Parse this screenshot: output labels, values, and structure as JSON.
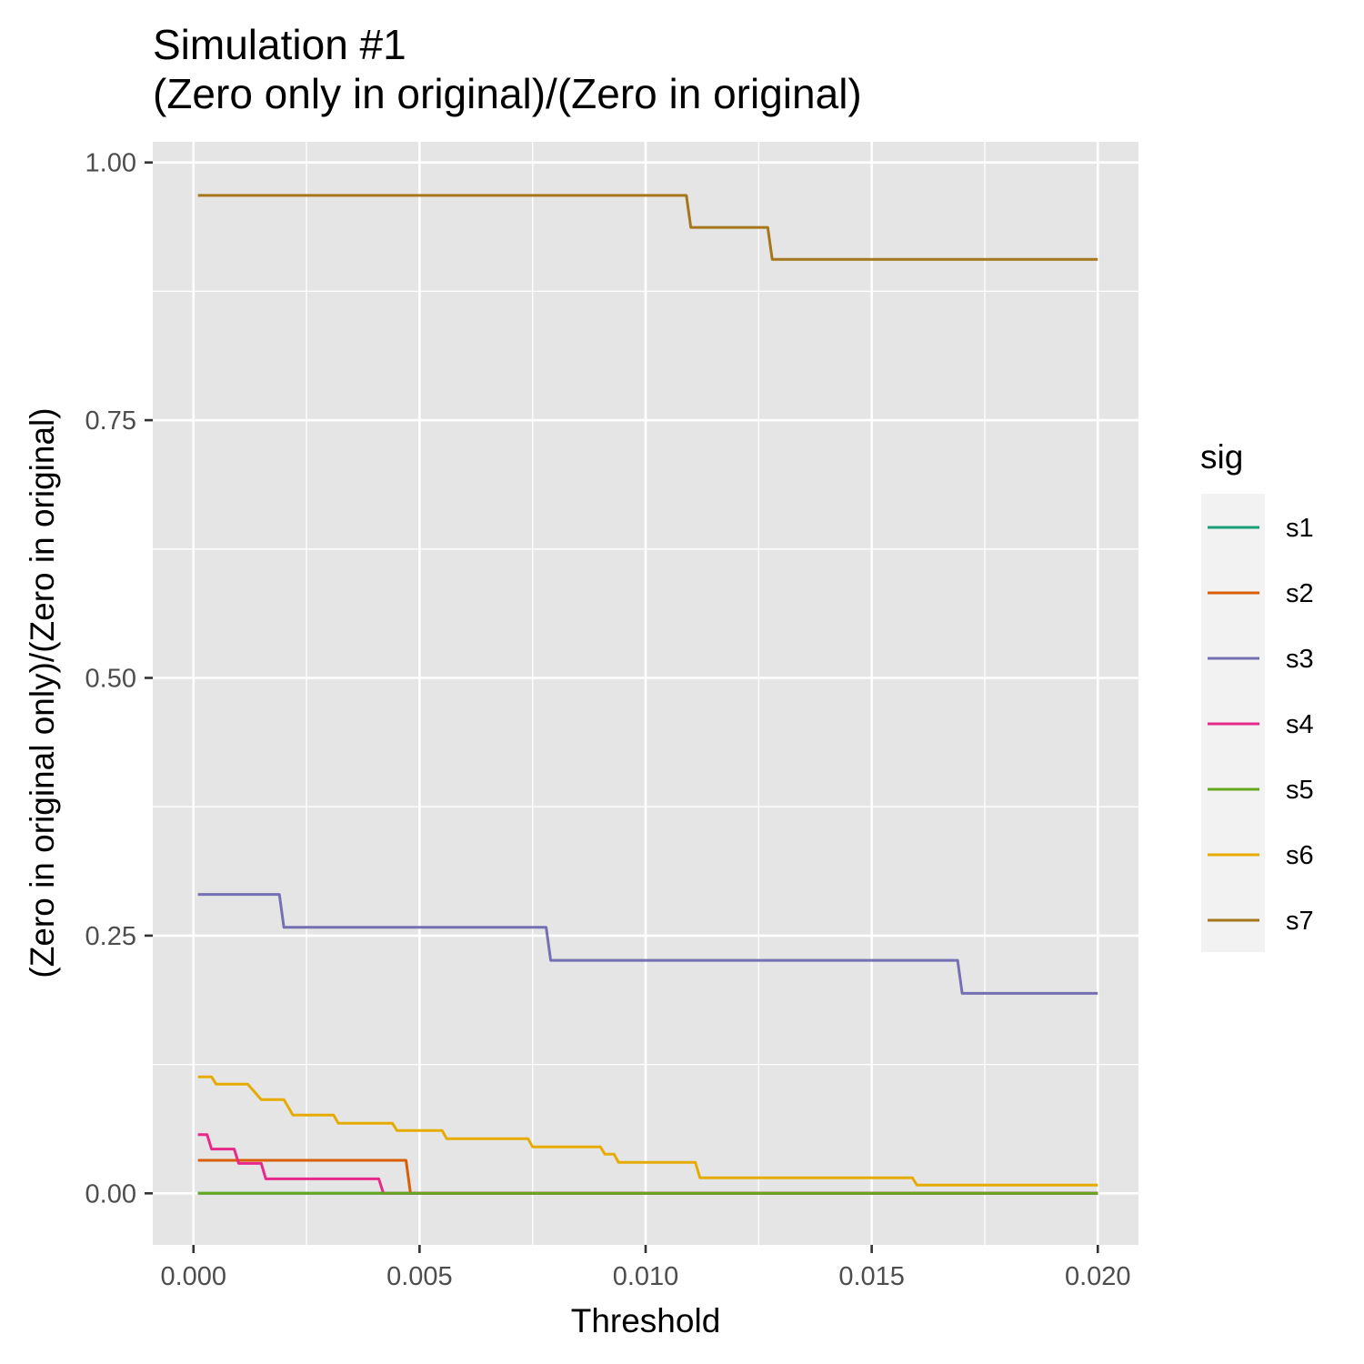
{
  "chart_data": {
    "type": "line",
    "step": true,
    "title": "Simulation #1",
    "subtitle": "(Zero only in original)/(Zero in original)",
    "xlabel": "Threshold",
    "ylabel": "(Zero in original only)/(Zero in original)",
    "xlim": [
      -0.0009,
      0.0209
    ],
    "ylim": [
      -0.05,
      1.02
    ],
    "x_ticks": [
      0.0,
      0.005,
      0.01,
      0.015,
      0.02
    ],
    "x_tick_labels": [
      "0.000",
      "0.005",
      "0.010",
      "0.015",
      "0.020"
    ],
    "y_ticks": [
      0.0,
      0.25,
      0.5,
      0.75,
      1.0
    ],
    "y_tick_labels": [
      "0.00",
      "0.25",
      "0.50",
      "0.75",
      "1.00"
    ],
    "grid": true,
    "legend": {
      "title": "sig",
      "position": "right"
    },
    "background": "#e5e5e5",
    "series": [
      {
        "name": "s1",
        "color": "#1b9e77",
        "x": [
          0.0001,
          0.02
        ],
        "y": [
          0.0,
          0.0
        ]
      },
      {
        "name": "s2",
        "color": "#d95f02",
        "x": [
          0.0001,
          0.0047,
          0.0048,
          0.02
        ],
        "y": [
          0.032,
          0.032,
          0.0,
          0.0
        ]
      },
      {
        "name": "s3",
        "color": "#7570b3",
        "x": [
          0.0001,
          0.0019,
          0.002,
          0.0078,
          0.0079,
          0.0169,
          0.017,
          0.02
        ],
        "y": [
          0.29,
          0.29,
          0.258,
          0.258,
          0.226,
          0.226,
          0.194,
          0.194
        ]
      },
      {
        "name": "s4",
        "color": "#e7298a",
        "x": [
          0.0001,
          0.0003,
          0.0004,
          0.0009,
          0.001,
          0.0015,
          0.0016,
          0.0041,
          0.0042,
          0.02
        ],
        "y": [
          0.057,
          0.057,
          0.043,
          0.043,
          0.029,
          0.029,
          0.014,
          0.014,
          0.0,
          0.0
        ]
      },
      {
        "name": "s5",
        "color": "#66a61e",
        "x": [
          0.0001,
          0.02
        ],
        "y": [
          0.0,
          0.0
        ]
      },
      {
        "name": "s6",
        "color": "#e6ab02",
        "x": [
          0.0001,
          0.0004,
          0.0005,
          0.0012,
          0.0015,
          0.002,
          0.0022,
          0.0031,
          0.0032,
          0.0044,
          0.0045,
          0.0055,
          0.0056,
          0.0074,
          0.0075,
          0.009,
          0.0091,
          0.0093,
          0.0094,
          0.0111,
          0.0112,
          0.0159,
          0.016,
          0.02
        ],
        "y": [
          0.113,
          0.113,
          0.106,
          0.106,
          0.091,
          0.091,
          0.076,
          0.076,
          0.068,
          0.068,
          0.061,
          0.061,
          0.053,
          0.053,
          0.045,
          0.045,
          0.038,
          0.038,
          0.03,
          0.03,
          0.015,
          0.015,
          0.008,
          0.008
        ]
      },
      {
        "name": "s7",
        "color": "#a6761d",
        "x": [
          0.0001,
          0.0109,
          0.011,
          0.0127,
          0.0128,
          0.02
        ],
        "y": [
          0.968,
          0.968,
          0.937,
          0.937,
          0.906,
          0.906
        ]
      }
    ]
  }
}
